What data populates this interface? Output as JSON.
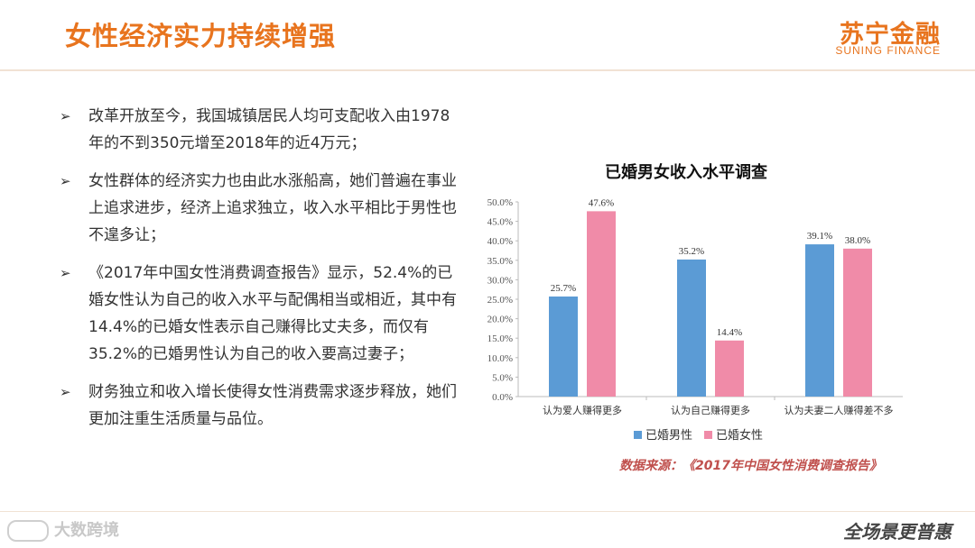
{
  "header": {
    "title": "女性经济实力持续增强",
    "logo_cn": "苏宁金融",
    "logo_en": "SUNING FINANCE"
  },
  "bullets": [
    "改革开放至今，我国城镇居民人均可支配收入由1978年的不到350元增至2018年的近4万元；",
    "女性群体的经济实力也由此水涨船高，她们普遍在事业上追求进步，经济上追求独立，收入水平相比于男性也不遑多让；",
    "《2017年中国女性消费调查报告》显示，52.4%的已婚女性认为自己的收入水平与配偶相当或相近，其中有14.4%的已婚女性表示自己赚得比丈夫多，而仅有35.2%的已婚男性认为自己的收入要高过妻子；",
    "财务独立和收入增长使得女性消费需求逐步释放，她们更加注重生活质量与品位。"
  ],
  "bullet_marker": "➢",
  "chart_data": {
    "type": "bar",
    "title": "已婚男女收入水平调查",
    "categories": [
      "认为爱人赚得更多",
      "认为自己赚得更多",
      "认为夫妻二人赚得差不多"
    ],
    "series": [
      {
        "name": "已婚男性",
        "values": [
          25.7,
          35.2,
          39.1
        ],
        "color": "#5b9bd5"
      },
      {
        "name": "已婚女性",
        "values": [
          47.6,
          14.4,
          38.0
        ],
        "color": "#f08ba8"
      }
    ],
    "value_labels": [
      [
        "25.7%",
        "35.2%",
        "39.1%"
      ],
      [
        "47.6%",
        "14.4%",
        "38.0%"
      ]
    ],
    "ylim": [
      0,
      50
    ],
    "yticks": [
      "0.0%",
      "5.0%",
      "10.0%",
      "15.0%",
      "20.0%",
      "25.0%",
      "30.0%",
      "35.0%",
      "40.0%",
      "45.0%",
      "50.0%"
    ],
    "legend_position": "bottom",
    "grid": false
  },
  "source": "数据来源：《2017年中国女性消费调查报告》",
  "footer": {
    "watermark": "大数跨境",
    "slogan": "全场景更普惠"
  }
}
